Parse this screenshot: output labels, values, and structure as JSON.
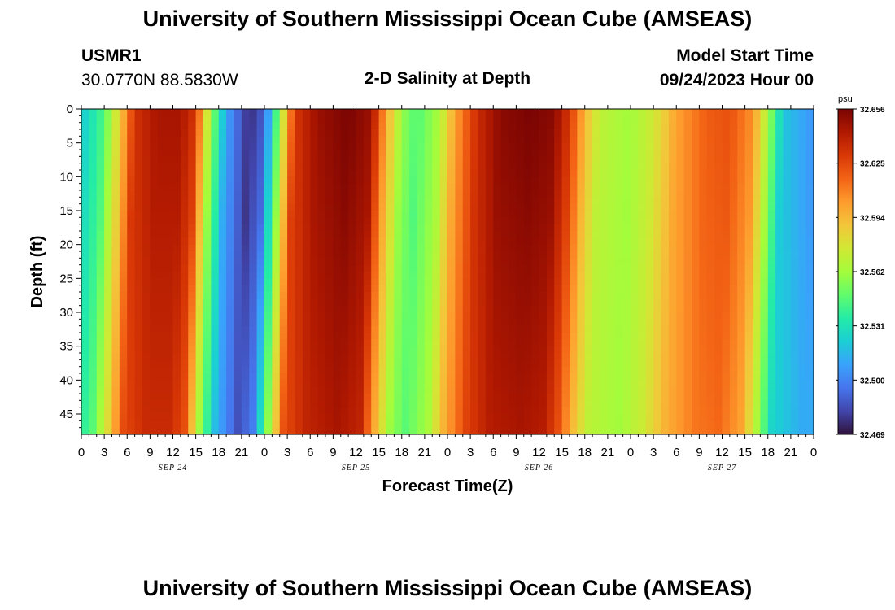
{
  "header": {
    "title": "University of Southern Mississippi Ocean Cube (AMSEAS)",
    "station_id": "USMR1",
    "station_coords": "30.0770N  88.5830W",
    "subtitle": "2-D Salinity at Depth",
    "model_start_label": "Model Start Time",
    "model_start_value": "09/24/2023 Hour 00"
  },
  "footer": {
    "title_repeat": "University of Southern Mississippi Ocean Cube (AMSEAS)"
  },
  "chart_data": {
    "type": "heatmap",
    "title": "2-D Salinity at Depth",
    "xlabel": "Forecast Time(Z)",
    "ylabel": "Depth (ft)",
    "x_range_hours": [
      0,
      96
    ],
    "ylim": [
      0,
      48
    ],
    "y_ticks": [
      0,
      5,
      10,
      15,
      20,
      25,
      30,
      35,
      40,
      45
    ],
    "x_tick_labels": [
      "0",
      "3",
      "6",
      "9",
      "12",
      "15",
      "18",
      "21",
      "0",
      "3",
      "6",
      "9",
      "12",
      "15",
      "18",
      "21",
      "0",
      "3",
      "6",
      "9",
      "12",
      "15",
      "18",
      "21",
      "0",
      "3",
      "6",
      "9",
      "12",
      "15",
      "18",
      "21",
      "0"
    ],
    "day_labels": [
      {
        "label": "SEP 24",
        "hour": 12
      },
      {
        "label": "SEP 25",
        "hour": 36
      },
      {
        "label": "SEP 26",
        "hour": 60
      },
      {
        "label": "SEP 27",
        "hour": 84
      }
    ],
    "colorbar": {
      "unit": "psu",
      "min": 32.469,
      "max": 32.656,
      "ticks": [
        "32.656",
        "32.625",
        "32.594",
        "32.562",
        "32.531",
        "32.500",
        "32.469"
      ],
      "colors": [
        "#30123b",
        "#4145ab",
        "#4675ed",
        "#39a2fc",
        "#1bcfd4",
        "#24eca6",
        "#61fc6c",
        "#a4fc3b",
        "#d1e834",
        "#f3c63a",
        "#fe9b2d",
        "#f36315",
        "#d93806",
        "#b11901",
        "#7a0403"
      ]
    },
    "salinity_profile_top": [
      {
        "hour": 0,
        "value": 32.52
      },
      {
        "hour": 3,
        "value": 32.545
      },
      {
        "hour": 5,
        "value": 32.585
      },
      {
        "hour": 7,
        "value": 32.632
      },
      {
        "hour": 10,
        "value": 32.645
      },
      {
        "hour": 13,
        "value": 32.645
      },
      {
        "hour": 15,
        "value": 32.63
      },
      {
        "hour": 17,
        "value": 32.56
      },
      {
        "hour": 19,
        "value": 32.51
      },
      {
        "hour": 22,
        "value": 32.475
      },
      {
        "hour": 24,
        "value": 32.49
      },
      {
        "hour": 26,
        "value": 32.56
      },
      {
        "hour": 28,
        "value": 32.63
      },
      {
        "hour": 31,
        "value": 32.648
      },
      {
        "hour": 35,
        "value": 32.656
      },
      {
        "hour": 38,
        "value": 32.648
      },
      {
        "hour": 40,
        "value": 32.6
      },
      {
        "hour": 42,
        "value": 32.56
      },
      {
        "hour": 44,
        "value": 32.545
      },
      {
        "hour": 47,
        "value": 32.565
      },
      {
        "hour": 49,
        "value": 32.6
      },
      {
        "hour": 52,
        "value": 32.635
      },
      {
        "hour": 55,
        "value": 32.652
      },
      {
        "hour": 59,
        "value": 32.656
      },
      {
        "hour": 62,
        "value": 32.652
      },
      {
        "hour": 64,
        "value": 32.63
      },
      {
        "hour": 66,
        "value": 32.595
      },
      {
        "hour": 68,
        "value": 32.57
      },
      {
        "hour": 72,
        "value": 32.562
      },
      {
        "hour": 75,
        "value": 32.575
      },
      {
        "hour": 78,
        "value": 32.6
      },
      {
        "hour": 82,
        "value": 32.618
      },
      {
        "hour": 85,
        "value": 32.622
      },
      {
        "hour": 88,
        "value": 32.605
      },
      {
        "hour": 90,
        "value": 32.565
      },
      {
        "hour": 92,
        "value": 32.52
      },
      {
        "hour": 96,
        "value": 32.505
      }
    ]
  }
}
